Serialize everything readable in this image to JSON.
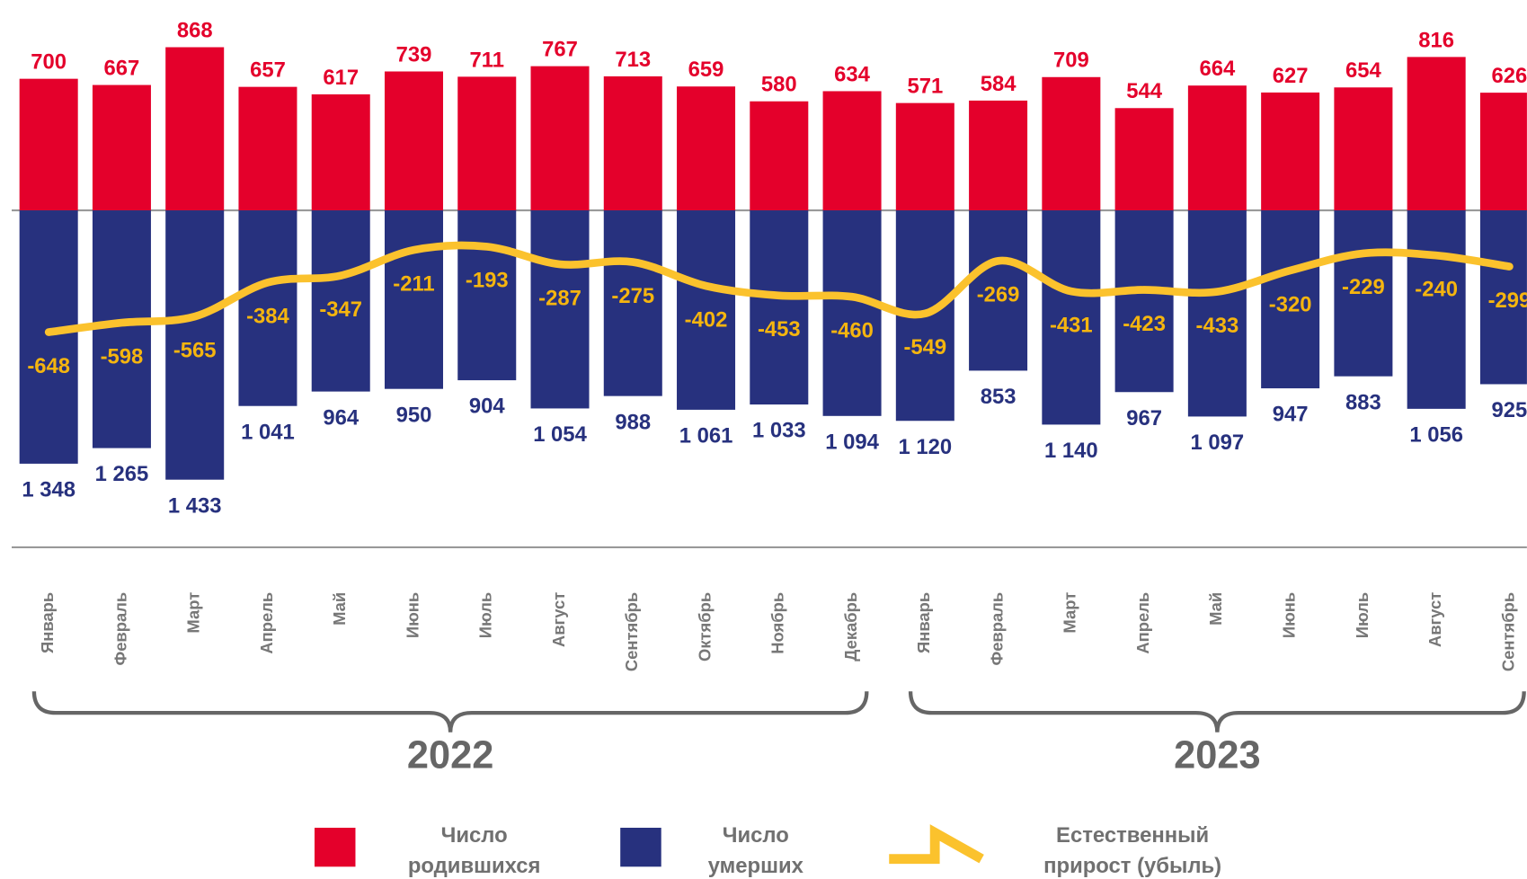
{
  "chart_data": {
    "type": "bar",
    "categories": [
      "Январь",
      "Февраль",
      "Март",
      "Апрель",
      "Май",
      "Июнь",
      "Июль",
      "Август",
      "Сентябрь",
      "Октябрь",
      "Ноябрь",
      "Декабрь",
      "Январь",
      "Февраль",
      "Март",
      "Апрель",
      "Май",
      "Июнь",
      "Июль",
      "Август",
      "Сентябрь"
    ],
    "groups": [
      "2022",
      "2023"
    ],
    "series": [
      {
        "name": "Число родившихся",
        "color": "#e4002b",
        "values": [
          700,
          667,
          868,
          657,
          617,
          739,
          711,
          767,
          713,
          659,
          580,
          634,
          571,
          584,
          709,
          544,
          664,
          627,
          654,
          816,
          626
        ]
      },
      {
        "name": "Число умерших",
        "color": "#27317e",
        "direction": "down",
        "values": [
          1348,
          1265,
          1433,
          1041,
          964,
          950,
          904,
          1054,
          988,
          1061,
          1033,
          1094,
          1120,
          853,
          1140,
          967,
          1097,
          947,
          883,
          1056,
          925
        ],
        "value_labels": [
          "1 348",
          "1 265",
          "1 433",
          "1 041",
          "964",
          "950",
          "904",
          "1 054",
          "988",
          "1 061",
          "1 033",
          "1 094",
          "1 120",
          "853",
          "1 140",
          "967",
          "1 097",
          "947",
          "883",
          "1 056",
          "925"
        ]
      },
      {
        "name": "Естественный прирост (убыль)",
        "type": "line",
        "color": "#fbc22d",
        "values": [
          -648,
          -598,
          -565,
          -384,
          -347,
          -211,
          -193,
          -287,
          -275,
          -402,
          -453,
          -460,
          -549,
          -269,
          -431,
          -423,
          -433,
          -320,
          -229,
          -240,
          -299
        ]
      }
    ]
  }
}
